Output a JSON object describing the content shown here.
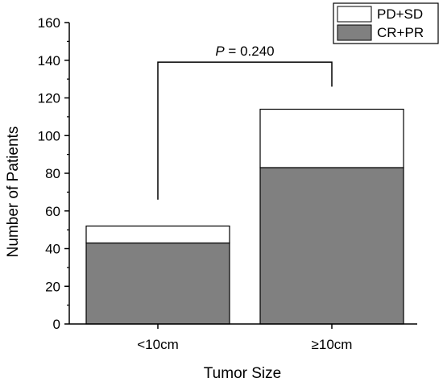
{
  "chart_data": {
    "type": "bar",
    "stacked": true,
    "categories": [
      "<10cm",
      "≥10cm"
    ],
    "series": [
      {
        "name": "CR+PR",
        "values": [
          43,
          83
        ],
        "color": "#808080"
      },
      {
        "name": "PD+SD",
        "values": [
          9,
          31
        ],
        "color": "#ffffff"
      }
    ],
    "xlabel": "Tumor Size",
    "ylabel": "Number of Patients",
    "ylim": [
      0,
      160
    ],
    "yticks": [
      0,
      20,
      40,
      60,
      80,
      100,
      120,
      140,
      160
    ],
    "grid": false,
    "legend": {
      "position": "top-right",
      "entries": [
        {
          "label": "PD+SD",
          "color": "#ffffff"
        },
        {
          "label": "CR+PR",
          "color": "#808080"
        }
      ]
    },
    "annotation": {
      "p_label": "P",
      "p_value": "= 0.240",
      "bracket_left_y": 66,
      "bracket_right_y": 126,
      "bracket_top_y": 139
    }
  }
}
